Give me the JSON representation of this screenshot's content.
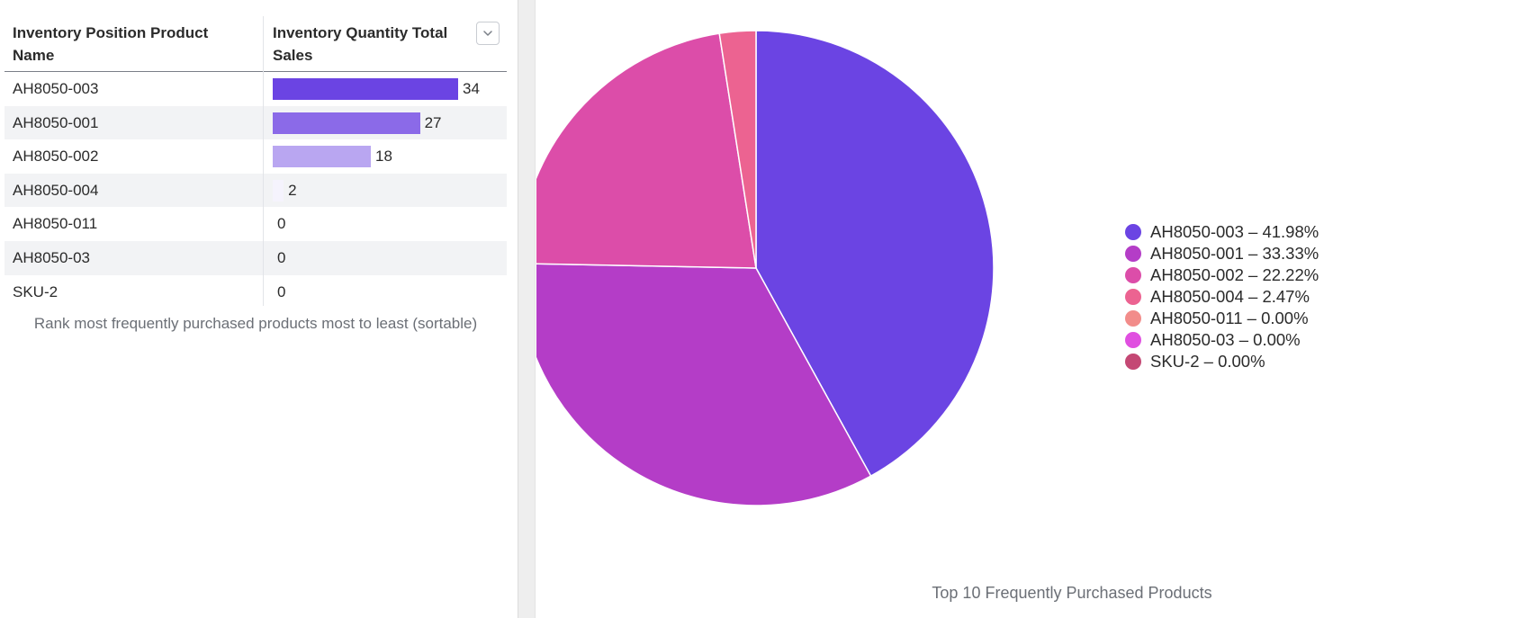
{
  "table": {
    "headers": [
      "Inventory Position Product Name",
      "Inventory Quantity Total Sales"
    ],
    "rows": [
      {
        "name": "AH8050-003",
        "value": 34,
        "color": "#6b44e3"
      },
      {
        "name": "AH8050-001",
        "value": 27,
        "color": "#8b6ae8"
      },
      {
        "name": "AH8050-002",
        "value": 18,
        "color": "#b9a6f1"
      },
      {
        "name": "AH8050-004",
        "value": 2,
        "color": "#f5f3fd"
      },
      {
        "name": "AH8050-011",
        "value": 0,
        "color": "#ffffff"
      },
      {
        "name": "AH8050-03",
        "value": 0,
        "color": "#ffffff"
      },
      {
        "name": "SKU-2",
        "value": 0,
        "color": "#ffffff"
      }
    ],
    "max": 34,
    "caption": "Rank most frequently purchased products most to least (sortable)",
    "sort_icon": "chevron-down-icon"
  },
  "chart_data": {
    "type": "pie",
    "title": "Top 10 Frequently Purchased Products",
    "legend_position": "right",
    "slices": [
      {
        "label": "AH8050-003",
        "value": 34,
        "percent": "41.98%",
        "color": "#6b44e3"
      },
      {
        "label": "AH8050-001",
        "value": 27,
        "percent": "33.33%",
        "color": "#b43dc7"
      },
      {
        "label": "AH8050-002",
        "value": 18,
        "percent": "22.22%",
        "color": "#dc4da9"
      },
      {
        "label": "AH8050-004",
        "value": 2,
        "percent": "2.47%",
        "color": "#ec6391"
      },
      {
        "label": "AH8050-011",
        "value": 0,
        "percent": "0.00%",
        "color": "#f28c8a"
      },
      {
        "label": "AH8050-03",
        "value": 0,
        "percent": "0.00%",
        "color": "#e04fe0"
      },
      {
        "label": "SKU-2",
        "value": 0,
        "percent": "0.00%",
        "color": "#c44874"
      }
    ]
  }
}
